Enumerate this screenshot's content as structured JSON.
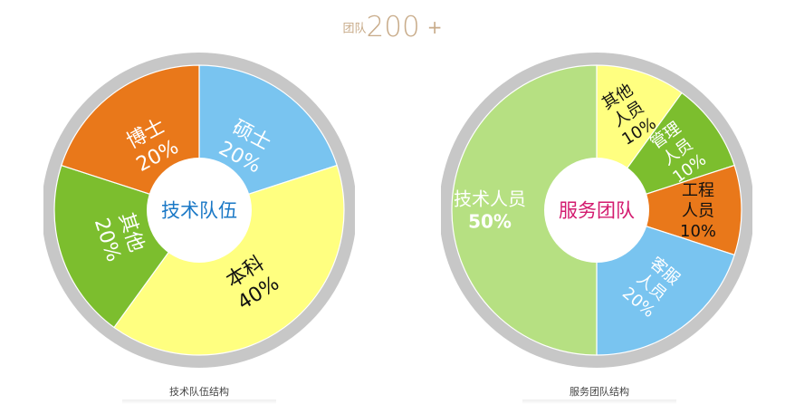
{
  "header": {
    "small": "团队",
    "big": "200",
    "plus": "+"
  },
  "chart_data": [
    {
      "type": "pie",
      "center_label": "技术队伍",
      "caption": "技术队伍结构",
      "slices": [
        {
          "label": "硕士",
          "value": 20,
          "display": "20%",
          "color": "#79c4f0"
        },
        {
          "label": "本科",
          "value": 40,
          "display": "40%",
          "color": "#ffff80"
        },
        {
          "label": "其他",
          "value": 20,
          "display": "20%",
          "color": "#7cbe2e"
        },
        {
          "label": "博士",
          "value": 20,
          "display": "20%",
          "color": "#e9781a"
        }
      ]
    },
    {
      "type": "pie",
      "center_label": "服务团队",
      "caption": "服务团队结构",
      "slices": [
        {
          "label": "其他人员",
          "value": 10,
          "display": "10%",
          "color": "#ffff80"
        },
        {
          "label": "管理人员",
          "value": 10,
          "display": "10%",
          "color": "#7cbe2e"
        },
        {
          "label": "工程人员",
          "value": 10,
          "display": "10%",
          "color": "#e9781a"
        },
        {
          "label": "客服人员",
          "value": 20,
          "display": "20%",
          "color": "#79c4f0"
        },
        {
          "label": "技术人员",
          "value": 50,
          "display": "50%",
          "color": "#b6e082"
        }
      ]
    }
  ]
}
